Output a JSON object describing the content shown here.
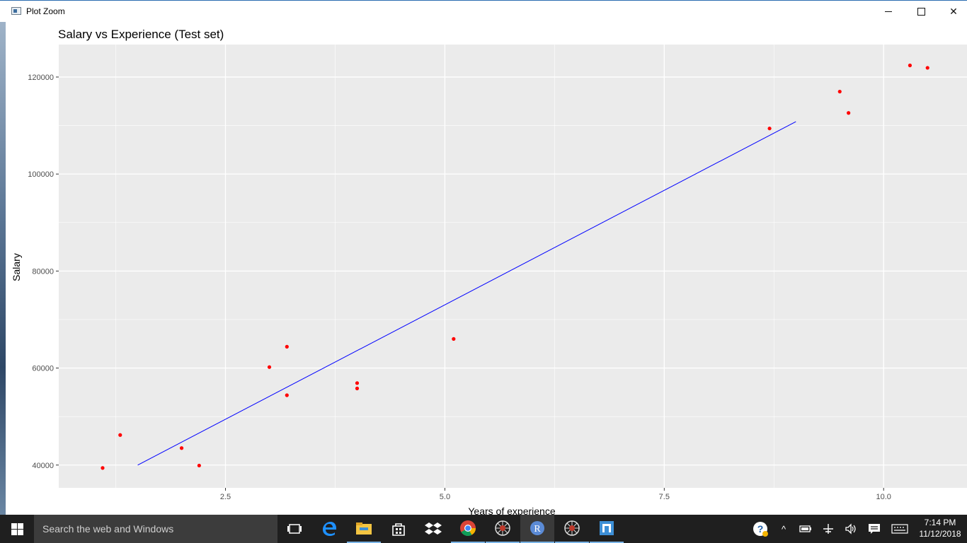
{
  "window": {
    "title": "Plot Zoom"
  },
  "chart_data": {
    "type": "scatter",
    "title": "Salary vs Experience (Test set)",
    "xlabel": "Years of experience",
    "ylabel": "Salary",
    "xlim": [
      0.6,
      10.95
    ],
    "ylim": [
      35300,
      126700
    ],
    "xticks": [
      2.5,
      5.0,
      7.5,
      10.0
    ],
    "xtick_labels": [
      "2.5",
      "5.0",
      "7.5",
      "10.0"
    ],
    "yticks": [
      40000,
      60000,
      80000,
      100000,
      120000
    ],
    "ytick_labels": [
      "40000",
      "60000",
      "80000",
      "100000",
      "120000"
    ],
    "x_minor": [
      1.25,
      3.75,
      6.25,
      8.75
    ],
    "y_minor": [
      50000,
      70000,
      90000,
      110000
    ],
    "grid": true,
    "legend": "none",
    "background": "#ebebeb",
    "point_color": "#ff0000",
    "line_color": "#0000ff",
    "points": {
      "x": [
        1.1,
        1.3,
        2.0,
        2.2,
        3.0,
        3.2,
        3.2,
        4.0,
        4.0,
        5.1,
        8.7,
        9.5,
        9.6,
        10.3,
        10.5
      ],
      "y": [
        39400,
        46200,
        43500,
        39900,
        60200,
        64400,
        54400,
        56900,
        55800,
        66000,
        109400,
        117000,
        112600,
        122400,
        121900
      ]
    },
    "regression_line": {
      "x": [
        1.5,
        9.0
      ],
      "y": [
        40000,
        110800
      ]
    }
  },
  "taskbar": {
    "search_placeholder": "Search the web and Windows",
    "clock_time": "7:14 PM",
    "clock_date": "11/12/2018",
    "apps": [
      "task-view-icon",
      "edge-icon",
      "file-explorer-icon",
      "store-icon",
      "dropbox-icon",
      "chrome-icon",
      "spider-app-icon",
      "r-icon",
      "spider-app-icon",
      "app-icon"
    ]
  }
}
